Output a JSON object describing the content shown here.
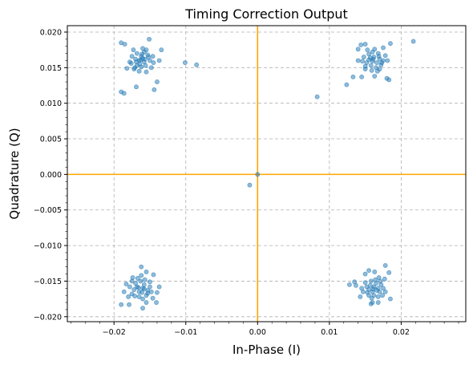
{
  "chart_data": {
    "type": "scatter",
    "title": "Timing Correction Output",
    "xlabel": "In-Phase (I)",
    "ylabel": "Quadrature (Q)",
    "xlim": [
      -0.0265,
      0.029
    ],
    "ylim": [
      -0.0207,
      0.0209
    ],
    "x_ticks": [
      -0.02,
      -0.01,
      0.0,
      0.01,
      0.02
    ],
    "x_tick_labels": [
      "−0.02",
      "−0.01",
      "0.00",
      "0.01",
      "0.02"
    ],
    "y_ticks": [
      -0.02,
      -0.015,
      -0.01,
      -0.005,
      0.0,
      0.005,
      0.01,
      0.015,
      0.02
    ],
    "y_tick_labels": [
      "−0.020",
      "−0.015",
      "−0.010",
      "−0.005",
      "0.000",
      "0.005",
      "0.010",
      "0.015",
      "0.020"
    ],
    "grid": true,
    "reference_lines": {
      "x": 0,
      "y": 0,
      "color": "#ffa500"
    },
    "point_color": "#1f77b4",
    "points": [
      [
        0.0,
        0.0
      ],
      [
        -0.0011,
        -0.0015
      ],
      [
        0.0083,
        0.0109
      ],
      [
        -0.0085,
        0.0154
      ],
      [
        -0.0101,
        0.0157
      ],
      [
        0.0217,
        0.0187
      ],
      [
        -0.019,
        0.0185
      ],
      [
        -0.0185,
        0.0183
      ],
      [
        -0.019,
        0.0116
      ],
      [
        -0.0186,
        0.0114
      ],
      [
        -0.0169,
        0.0123
      ],
      [
        -0.0144,
        0.0119
      ],
      [
        -0.014,
        0.013
      ],
      [
        -0.0151,
        0.019
      ],
      [
        -0.0173,
        0.0175
      ],
      [
        -0.016,
        0.0177
      ],
      [
        -0.0134,
        0.0175
      ],
      [
        -0.0137,
        0.016
      ],
      [
        -0.0178,
        0.0158
      ],
      [
        -0.0182,
        0.0149
      ],
      [
        -0.0172,
        0.0148
      ],
      [
        -0.0165,
        0.0145
      ],
      [
        -0.0155,
        0.0144
      ],
      [
        -0.0148,
        0.015
      ],
      [
        -0.0158,
        0.0172
      ],
      [
        -0.0168,
        0.017
      ],
      [
        -0.0162,
        0.0166
      ],
      [
        -0.017,
        0.0162
      ],
      [
        -0.016,
        0.0163
      ],
      [
        -0.0152,
        0.0165
      ],
      [
        -0.0165,
        0.016
      ],
      [
        -0.0158,
        0.0158
      ],
      [
        -0.015,
        0.016
      ],
      [
        -0.0175,
        0.0166
      ],
      [
        -0.0164,
        0.0155
      ],
      [
        -0.0156,
        0.0153
      ],
      [
        -0.0145,
        0.0157
      ],
      [
        -0.0168,
        0.0153
      ],
      [
        -0.0176,
        0.0156
      ],
      [
        -0.0153,
        0.0168
      ],
      [
        -0.0146,
        0.0166
      ],
      [
        -0.0161,
        0.0169
      ],
      [
        -0.0169,
        0.0158
      ],
      [
        -0.0157,
        0.0162
      ],
      [
        -0.0163,
        0.0161
      ],
      [
        -0.0155,
        0.0175
      ],
      [
        -0.0171,
        0.015
      ],
      [
        -0.0162,
        0.0151
      ],
      [
        0.0144,
        0.0182
      ],
      [
        0.014,
        0.0176
      ],
      [
        0.015,
        0.0183
      ],
      [
        0.0175,
        0.0178
      ],
      [
        0.0185,
        0.0184
      ],
      [
        0.0124,
        0.0126
      ],
      [
        0.0133,
        0.0137
      ],
      [
        0.0145,
        0.0137
      ],
      [
        0.0183,
        0.0133
      ],
      [
        0.018,
        0.0135
      ],
      [
        0.0163,
        0.0138
      ],
      [
        0.017,
        0.0148
      ],
      [
        0.015,
        0.0148
      ],
      [
        0.016,
        0.0172
      ],
      [
        0.0168,
        0.017
      ],
      [
        0.0155,
        0.0169
      ],
      [
        0.0162,
        0.0165
      ],
      [
        0.017,
        0.0162
      ],
      [
        0.0155,
        0.0161
      ],
      [
        0.016,
        0.0159
      ],
      [
        0.0166,
        0.0157
      ],
      [
        0.0152,
        0.0157
      ],
      [
        0.0175,
        0.016
      ],
      [
        0.0148,
        0.0165
      ],
      [
        0.0158,
        0.0153
      ],
      [
        0.0165,
        0.015
      ],
      [
        0.0172,
        0.0154
      ],
      [
        0.0178,
        0.0167
      ],
      [
        0.0146,
        0.0159
      ],
      [
        0.0153,
        0.0175
      ],
      [
        0.0163,
        0.0176
      ],
      [
        0.0169,
        0.0166
      ],
      [
        0.0157,
        0.0164
      ],
      [
        0.0161,
        0.0162
      ],
      [
        0.0173,
        0.0157
      ],
      [
        0.015,
        0.0152
      ],
      [
        0.014,
        0.016
      ],
      [
        0.0181,
        0.016
      ],
      [
        0.0159,
        0.0146
      ],
      [
        0.0167,
        0.0145
      ],
      [
        -0.019,
        -0.0183
      ],
      [
        -0.0179,
        -0.0183
      ],
      [
        -0.0141,
        -0.018
      ],
      [
        -0.016,
        -0.0188
      ],
      [
        -0.0155,
        -0.018
      ],
      [
        -0.0186,
        -0.0165
      ],
      [
        -0.0183,
        -0.0154
      ],
      [
        -0.0175,
        -0.015
      ],
      [
        -0.0162,
        -0.013
      ],
      [
        -0.0155,
        -0.0137
      ],
      [
        -0.0145,
        -0.0141
      ],
      [
        -0.0137,
        -0.0158
      ],
      [
        -0.014,
        -0.0166
      ],
      [
        -0.0168,
        -0.0158
      ],
      [
        -0.016,
        -0.016
      ],
      [
        -0.0153,
        -0.0163
      ],
      [
        -0.0165,
        -0.0165
      ],
      [
        -0.0172,
        -0.0162
      ],
      [
        -0.0158,
        -0.0155
      ],
      [
        -0.015,
        -0.0158
      ],
      [
        -0.0163,
        -0.015
      ],
      [
        -0.017,
        -0.0153
      ],
      [
        -0.0155,
        -0.017
      ],
      [
        -0.0165,
        -0.0172
      ],
      [
        -0.0175,
        -0.0168
      ],
      [
        -0.0148,
        -0.0165
      ],
      [
        -0.016,
        -0.0175
      ],
      [
        -0.0167,
        -0.0146
      ],
      [
        -0.0157,
        -0.0148
      ],
      [
        -0.015,
        -0.0151
      ],
      [
        -0.0178,
        -0.0158
      ],
      [
        -0.0161,
        -0.0166
      ],
      [
        -0.0158,
        -0.0161
      ],
      [
        -0.0166,
        -0.0159
      ],
      [
        -0.0153,
        -0.0167
      ],
      [
        -0.0171,
        -0.0171
      ],
      [
        -0.0162,
        -0.0142
      ],
      [
        -0.0146,
        -0.0174
      ],
      [
        -0.018,
        -0.0172
      ],
      [
        -0.0174,
        -0.0145
      ],
      [
        0.0128,
        -0.0155
      ],
      [
        0.0135,
        -0.0151
      ],
      [
        0.0137,
        -0.0156
      ],
      [
        0.0155,
        -0.0135
      ],
      [
        0.0163,
        -0.0137
      ],
      [
        0.0178,
        -0.0128
      ],
      [
        0.0183,
        -0.0138
      ],
      [
        0.0177,
        -0.0147
      ],
      [
        0.015,
        -0.014
      ],
      [
        0.016,
        -0.018
      ],
      [
        0.0158,
        -0.0182
      ],
      [
        0.0168,
        -0.018
      ],
      [
        0.0185,
        -0.0175
      ],
      [
        0.0143,
        -0.0172
      ],
      [
        0.0162,
        -0.0158
      ],
      [
        0.0168,
        -0.016
      ],
      [
        0.0155,
        -0.0162
      ],
      [
        0.016,
        -0.0165
      ],
      [
        0.017,
        -0.0165
      ],
      [
        0.0152,
        -0.0158
      ],
      [
        0.0165,
        -0.0153
      ],
      [
        0.0158,
        -0.015
      ],
      [
        0.0172,
        -0.0155
      ],
      [
        0.0147,
        -0.0165
      ],
      [
        0.0162,
        -0.017
      ],
      [
        0.0168,
        -0.0172
      ],
      [
        0.0155,
        -0.017
      ],
      [
        0.0175,
        -0.016
      ],
      [
        0.015,
        -0.0152
      ],
      [
        0.0164,
        -0.0148
      ],
      [
        0.0171,
        -0.015
      ],
      [
        0.0157,
        -0.0156
      ],
      [
        0.0166,
        -0.0163
      ],
      [
        0.0153,
        -0.0166
      ],
      [
        0.0161,
        -0.0161
      ],
      [
        0.0178,
        -0.0165
      ],
      [
        0.0145,
        -0.016
      ],
      [
        0.0169,
        -0.0145
      ],
      [
        0.0159,
        -0.0174
      ],
      [
        0.0174,
        -0.017
      ]
    ]
  }
}
